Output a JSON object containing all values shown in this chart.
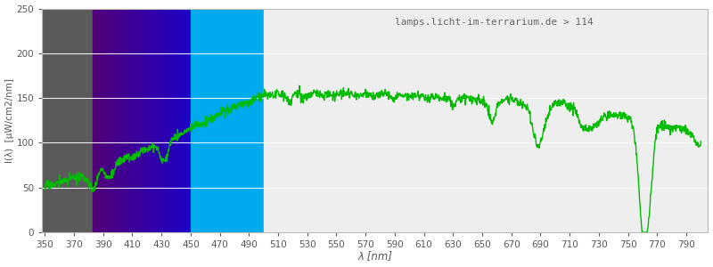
{
  "title": "lamps.licht-im-terrarium.de > 114",
  "xlabel": "λ [nm]",
  "ylabel": "I(λ)  [μW/cm2/nm]",
  "xlim": [
    348,
    805
  ],
  "ylim": [
    0,
    250
  ],
  "yticks": [
    0,
    50,
    100,
    150,
    200,
    250
  ],
  "xticks": [
    350,
    370,
    390,
    410,
    430,
    450,
    470,
    490,
    510,
    530,
    550,
    570,
    590,
    610,
    630,
    650,
    670,
    690,
    710,
    730,
    750,
    770,
    790
  ],
  "line_color": "#00bb00",
  "line_width": 1.0,
  "bg_color": "#ffffff",
  "plot_bg_color": "#eeeeee",
  "grid_color": "#ffffff",
  "title_color": "#666666",
  "axis_label_color": "#555555",
  "tick_label_color": "#555555",
  "band_uv_start": 348,
  "band_uv_end": 383,
  "band_violet_start": 383,
  "band_violet_end": 450,
  "band_blue_start": 450,
  "band_blue_end": 500,
  "green_region_start": 500
}
